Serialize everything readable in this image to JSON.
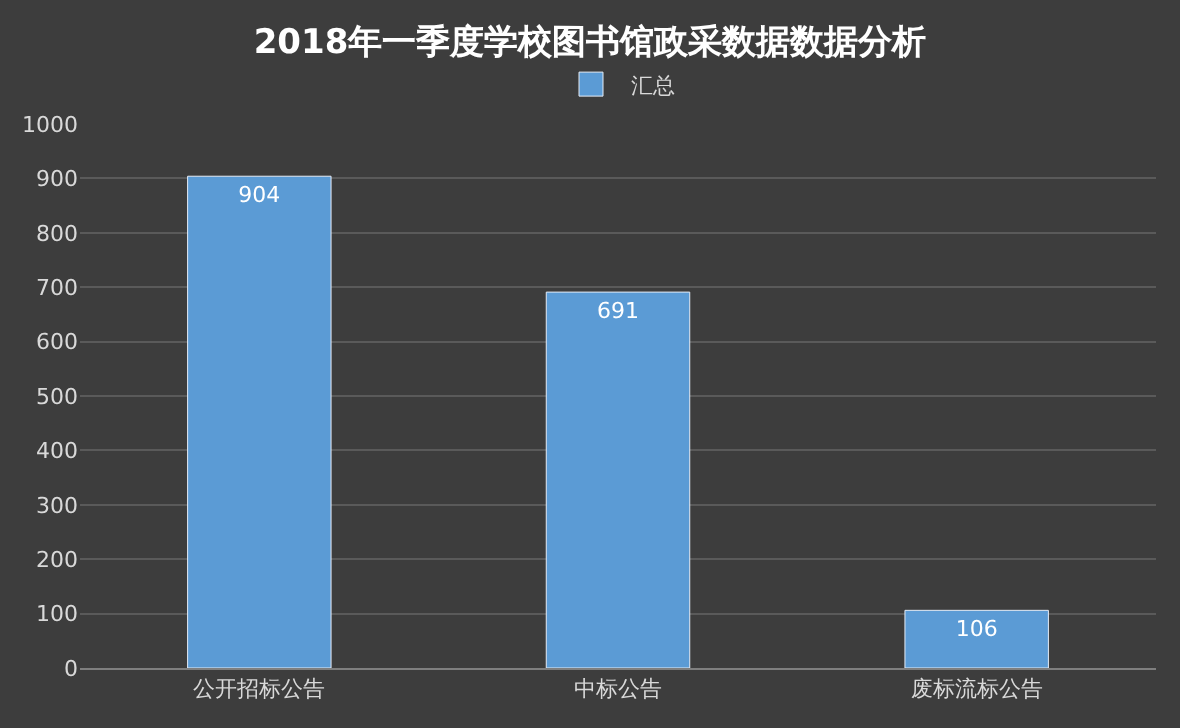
{
  "chart_data": {
    "type": "bar",
    "title": "2018年一季度学校图书馆政采数据数据分析",
    "categories": [
      "公开招标公告",
      "中标公告",
      "废标流标公告"
    ],
    "series": [
      {
        "name": "汇总",
        "color": "#5b9bd5",
        "values": [
          904,
          691,
          106
        ]
      }
    ],
    "ylim": [
      0,
      1000
    ],
    "yticks": [
      0,
      100,
      200,
      300,
      400,
      500,
      600,
      700,
      800,
      900,
      1000
    ],
    "grid": "y",
    "legend": "top",
    "data_labels": true
  }
}
